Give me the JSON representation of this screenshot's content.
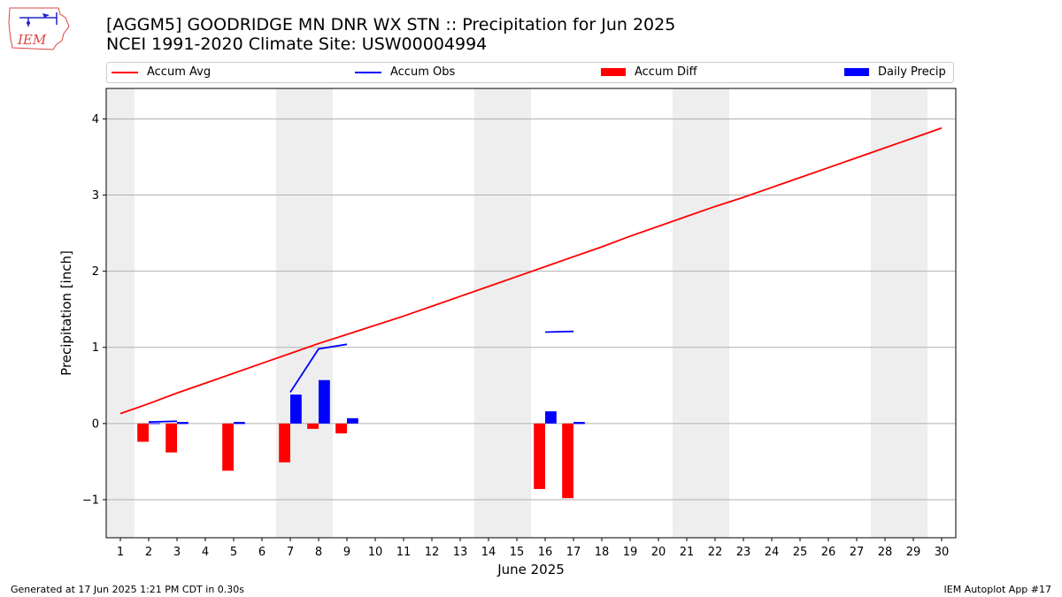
{
  "header": {
    "title_line1": "[AGGM5] GOODRIDGE MN DNR WX STN :: Precipitation for Jun 2025",
    "title_line2": "NCEI 1991-2020 Climate Site: USW00004994"
  },
  "logo": {
    "text": "IEM"
  },
  "legend": {
    "accum_avg": "Accum Avg",
    "accum_obs": "Accum Obs",
    "accum_diff": "Accum Diff",
    "daily_precip": "Daily Precip"
  },
  "footer": {
    "left": "Generated at 17 Jun 2025 1:21 PM CDT in 0.30s",
    "right": "IEM Autoplot App #17"
  },
  "colors": {
    "avg": "#ff0000",
    "obs": "#0000ff",
    "diff": "#ff0000",
    "precip": "#0000ff",
    "weekend": "#eeeeee",
    "grid": "#b0b0b0"
  },
  "chart_data": {
    "type": "bar",
    "xlabel": "June 2025",
    "ylabel": "Precipitation [inch]",
    "xlim": [
      0.5,
      30.5
    ],
    "ylim": [
      -1.5,
      4.4
    ],
    "days": [
      1,
      2,
      3,
      4,
      5,
      6,
      7,
      8,
      9,
      10,
      11,
      12,
      13,
      14,
      15,
      16,
      17,
      18,
      19,
      20,
      21,
      22,
      23,
      24,
      25,
      26,
      27,
      28,
      29,
      30
    ],
    "yticks": [
      -1,
      0,
      1,
      2,
      3,
      4
    ],
    "ytick_labels": [
      "−1",
      "0",
      "1",
      "2",
      "3",
      "4"
    ],
    "weekend_days": [
      1,
      7,
      8,
      14,
      15,
      21,
      22,
      28,
      29
    ],
    "grid": "y",
    "series": [
      {
        "name": "Accum Avg",
        "type": "line",
        "x": [
          1,
          2,
          3,
          4,
          5,
          6,
          7,
          8,
          9,
          10,
          11,
          12,
          13,
          14,
          15,
          16,
          17,
          18,
          19,
          20,
          21,
          22,
          23,
          24,
          25,
          26,
          27,
          28,
          29,
          30
        ],
        "y": [
          0.13,
          0.26,
          0.4,
          0.53,
          0.66,
          0.79,
          0.92,
          1.05,
          1.17,
          1.29,
          1.41,
          1.54,
          1.67,
          1.8,
          1.93,
          2.06,
          2.19,
          2.32,
          2.46,
          2.59,
          2.72,
          2.85,
          2.97,
          3.1,
          3.23,
          3.36,
          3.49,
          3.62,
          3.75,
          3.88
        ]
      },
      {
        "name": "Accum Obs",
        "type": "line",
        "segments": [
          {
            "x": [
              2,
              3
            ],
            "y": [
              0.02,
              0.03
            ]
          },
          {
            "x": [
              3,
              3.4
            ],
            "y": [
              0.01,
              0.01
            ]
          },
          {
            "x": [
              5,
              5.4
            ],
            "y": [
              0.01,
              0.01
            ]
          },
          {
            "x": [
              7,
              8,
              9
            ],
            "y": [
              0.41,
              0.98,
              1.04
            ]
          },
          {
            "x": [
              16,
              17
            ],
            "y": [
              1.2,
              1.21
            ]
          },
          {
            "x": [
              17,
              17.4
            ],
            "y": [
              0.01,
              0.01
            ]
          }
        ]
      },
      {
        "name": "Accum Diff",
        "type": "bar",
        "x": [
          2,
          3,
          5,
          7,
          8,
          9,
          16,
          17
        ],
        "values": [
          -0.24,
          -0.38,
          -0.62,
          -0.51,
          -0.07,
          -0.13,
          -0.86,
          -0.98
        ]
      },
      {
        "name": "Daily Precip",
        "type": "bar",
        "x": [
          2,
          3,
          5,
          7,
          8,
          9,
          16,
          17
        ],
        "values": [
          0.005,
          0.005,
          0.005,
          0.38,
          0.57,
          0.07,
          0.16,
          0.005
        ]
      }
    ]
  }
}
